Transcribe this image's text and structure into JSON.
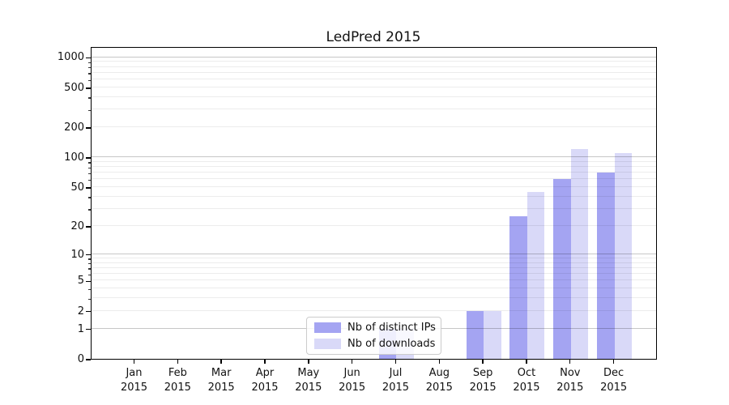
{
  "figure": {
    "title": "LedPred 2015"
  },
  "legend": {
    "items": [
      {
        "label": "Nb of distinct IPs",
        "color": "#a4a4f2"
      },
      {
        "label": "Nb of downloads",
        "color": "#d9d9f8"
      }
    ]
  },
  "chart_data": {
    "type": "bar",
    "title": "LedPred 2015",
    "categories": [
      "Jan",
      "Feb",
      "Mar",
      "Apr",
      "May",
      "Jun",
      "Jul",
      "Aug",
      "Sep",
      "Oct",
      "Nov",
      "Dec"
    ],
    "year": "2015",
    "series": [
      {
        "name": "Nb of distinct IPs",
        "color": "#a4a4f2",
        "values": [
          0,
          0,
          0,
          0,
          0,
          0,
          1,
          0,
          2,
          25,
          60,
          70
        ]
      },
      {
        "name": "Nb of downloads",
        "color": "#d9d9f8",
        "values": [
          0,
          0,
          0,
          0,
          0,
          0,
          1,
          0,
          2,
          45,
          120,
          110
        ]
      }
    ],
    "xlabel": "",
    "ylabel": "",
    "yscale": "log10(1+x)",
    "yticks": [
      0,
      1,
      2,
      5,
      10,
      20,
      50,
      100,
      200,
      500,
      1000
    ],
    "ylim": [
      0,
      1270
    ],
    "grid": "both",
    "legend_position": "inside-bottom-center"
  }
}
